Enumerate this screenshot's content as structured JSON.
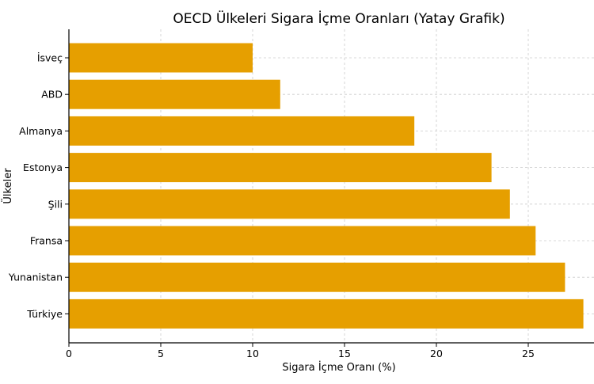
{
  "chart_data": {
    "type": "bar",
    "orientation": "horizontal",
    "title": "OECD Ülkeleri Sigara İçme Oranları (Yatay Grafik)",
    "xlabel": "Sigara İçme Oranı (%)",
    "ylabel": "Ülkeler",
    "categories": [
      "İsveç",
      "ABD",
      "Almanya",
      "Estonya",
      "Şili",
      "Fransa",
      "Yunanistan",
      "Türkiye"
    ],
    "values": [
      10.0,
      11.5,
      18.8,
      23.0,
      24.0,
      25.4,
      27.0,
      28.0
    ],
    "xlim": [
      0,
      28.5
    ],
    "xticks": [
      0,
      5,
      10,
      15,
      20,
      25
    ],
    "grid": true,
    "bar_color": "#E69F00"
  }
}
